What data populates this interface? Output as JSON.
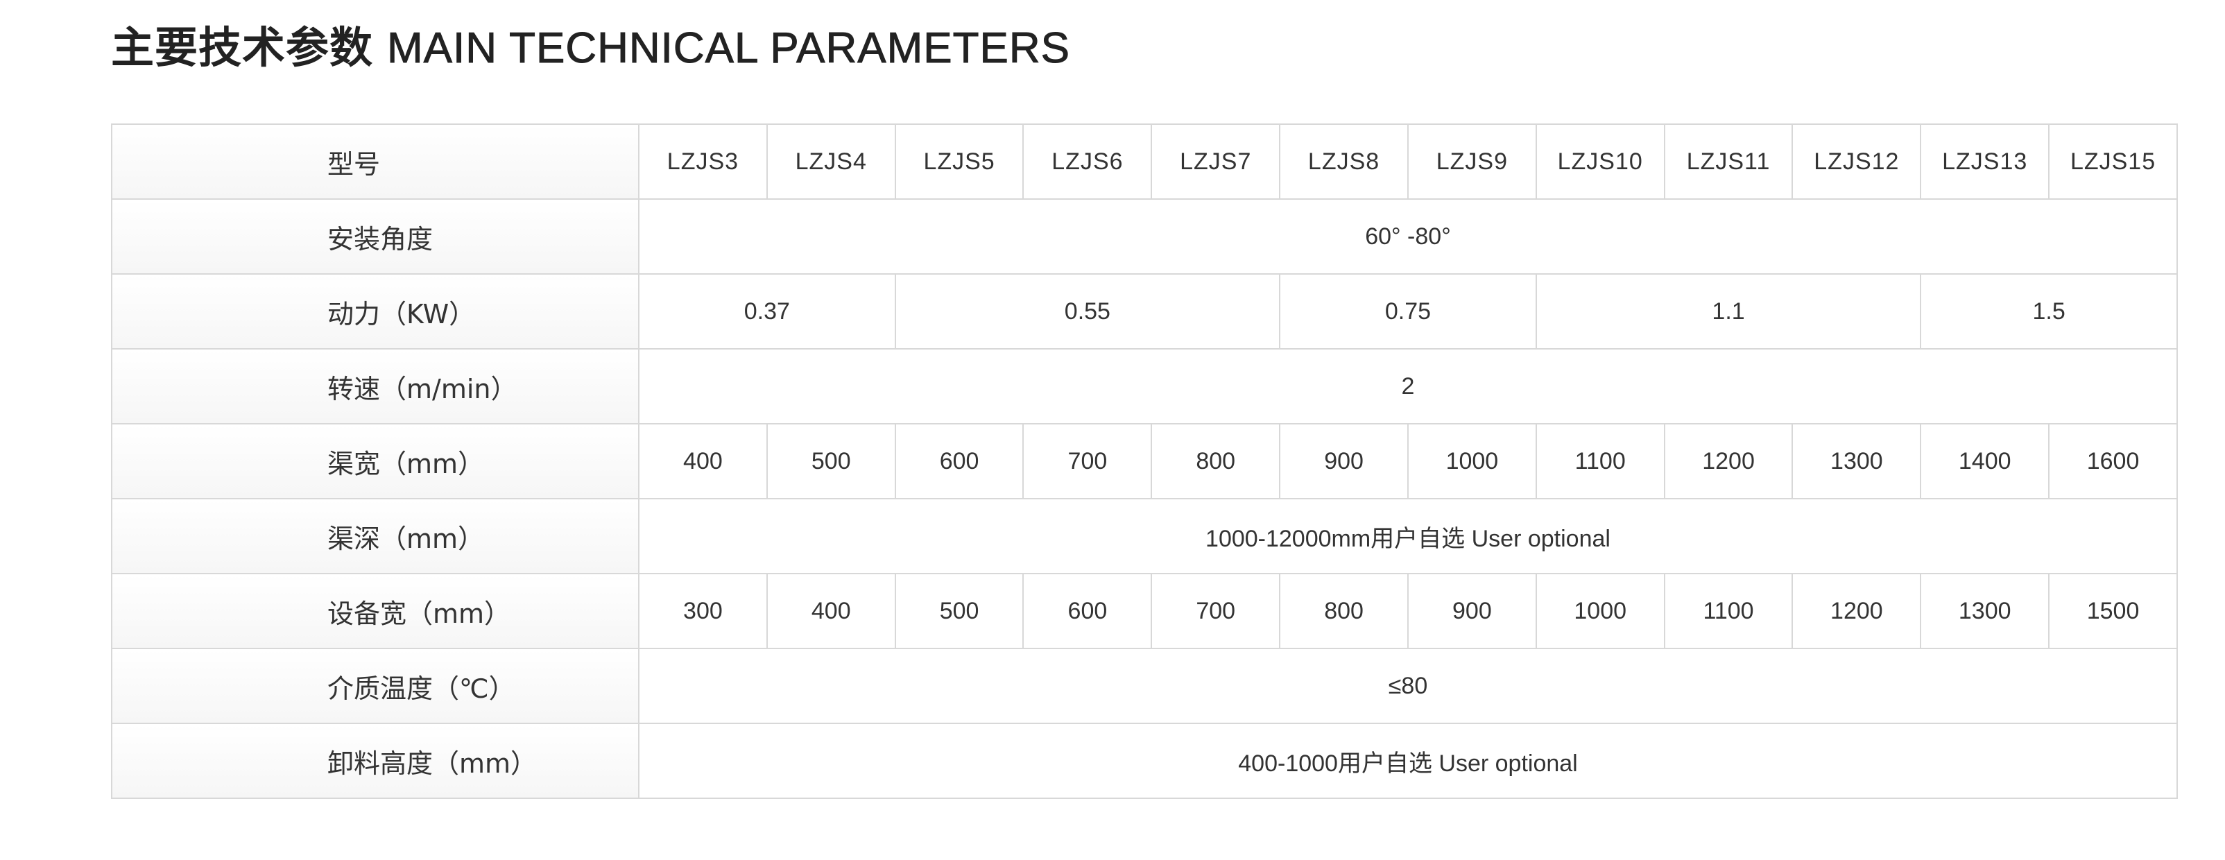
{
  "title": {
    "zh": "主要技术参数",
    "en": "MAIN TECHNICAL PARAMETERS"
  },
  "table": {
    "model_label": "型号",
    "models": [
      "LZJS3",
      "LZJS4",
      "LZJS5",
      "LZJS6",
      "LZJS7",
      "LZJS8",
      "LZJS9",
      "LZJS10",
      "LZJS11",
      "LZJS12",
      "LZJS13",
      "LZJS15"
    ],
    "angle": {
      "label": "安装角度",
      "value": "60° -80°"
    },
    "power": {
      "label": "动力（KW）",
      "values": [
        {
          "value": "0.37",
          "span": 2
        },
        {
          "value": "0.55",
          "span": 3
        },
        {
          "value": "0.75",
          "span": 2
        },
        {
          "value": "1.1",
          "span": 3
        },
        {
          "value": "1.5",
          "span": 2
        }
      ]
    },
    "speed": {
      "label": "转速（m/min）",
      "value": "2"
    },
    "channel_width": {
      "label": "渠宽（mm）",
      "values": [
        "400",
        "500",
        "600",
        "700",
        "800",
        "900",
        "1000",
        "1100",
        "1200",
        "1300",
        "1400",
        "1600"
      ]
    },
    "channel_depth": {
      "label": "渠深（mm）",
      "value": "1000-12000mm用户自选 User optional"
    },
    "equipment_width": {
      "label": "设备宽（mm）",
      "values": [
        "300",
        "400",
        "500",
        "600",
        "700",
        "800",
        "900",
        "1000",
        "1100",
        "1200",
        "1300",
        "1500"
      ]
    },
    "medium_temp": {
      "label": "介质温度（℃）",
      "value": "≤80"
    },
    "discharge_height": {
      "label": "卸料高度（mm）",
      "value": "400-1000用户自选 User optional"
    }
  }
}
